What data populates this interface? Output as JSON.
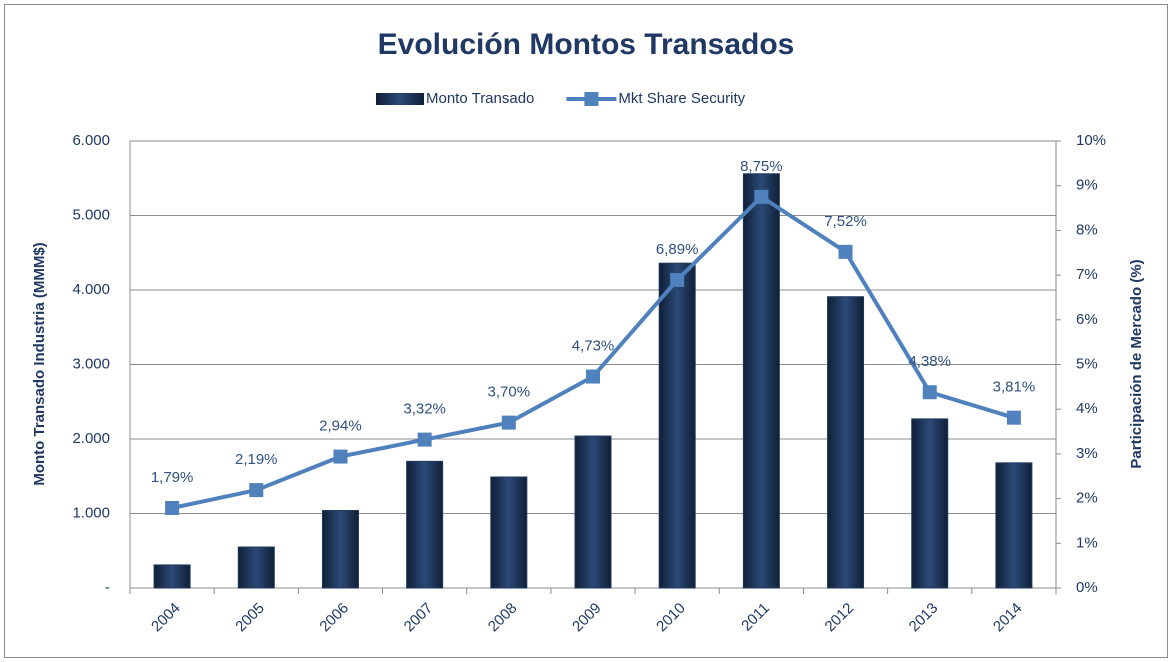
{
  "chart_data": {
    "type": "bar",
    "title": "Evolución Montos Transados",
    "ylabel": "Monto Transado  Industria (MMM$)",
    "y2label": "Participación de Mercado (%)",
    "categories": [
      "2004",
      "2005",
      "2006",
      "2007",
      "2008",
      "2009",
      "2010",
      "2011",
      "2012",
      "2013",
      "2014"
    ],
    "series": [
      {
        "name": "Monto Transado",
        "type": "bar",
        "color": "#1f3a60",
        "values": [
          310,
          550,
          1040,
          1700,
          1490,
          2040,
          4360,
          5560,
          3910,
          2270,
          1680
        ]
      },
      {
        "name": "Mkt Share Security",
        "type": "line",
        "axis": "y2",
        "color": "#4f81bd",
        "values": [
          1.79,
          2.19,
          2.94,
          3.32,
          3.7,
          4.73,
          6.89,
          8.75,
          7.52,
          4.38,
          3.81
        ],
        "value_labels": [
          "1,79%",
          "2,19%",
          "2,94%",
          "3,32%",
          "3,70%",
          "4,73%",
          "6,89%",
          "8,75%",
          "7,52%",
          "4,38%",
          "3,81%"
        ]
      }
    ],
    "ylim": [
      0,
      6000
    ],
    "yticks": [
      {
        "value": 0,
        "label": "-"
      },
      {
        "value": 1000,
        "label": "1.000"
      },
      {
        "value": 2000,
        "label": "2.000"
      },
      {
        "value": 3000,
        "label": "3.000"
      },
      {
        "value": 4000,
        "label": "4.000"
      },
      {
        "value": 5000,
        "label": "5.000"
      },
      {
        "value": 6000,
        "label": "6.000"
      }
    ],
    "y2lim": [
      0,
      10
    ],
    "y2ticks": [
      {
        "value": 0,
        "label": "0%"
      },
      {
        "value": 1,
        "label": "1%"
      },
      {
        "value": 2,
        "label": "2%"
      },
      {
        "value": 3,
        "label": "3%"
      },
      {
        "value": 4,
        "label": "4%"
      },
      {
        "value": 5,
        "label": "5%"
      },
      {
        "value": 6,
        "label": "6%"
      },
      {
        "value": 7,
        "label": "7%"
      },
      {
        "value": 8,
        "label": "8%"
      },
      {
        "value": 9,
        "label": "9%"
      },
      {
        "value": 10,
        "label": "10%"
      }
    ],
    "grid": true,
    "legend": "top"
  }
}
